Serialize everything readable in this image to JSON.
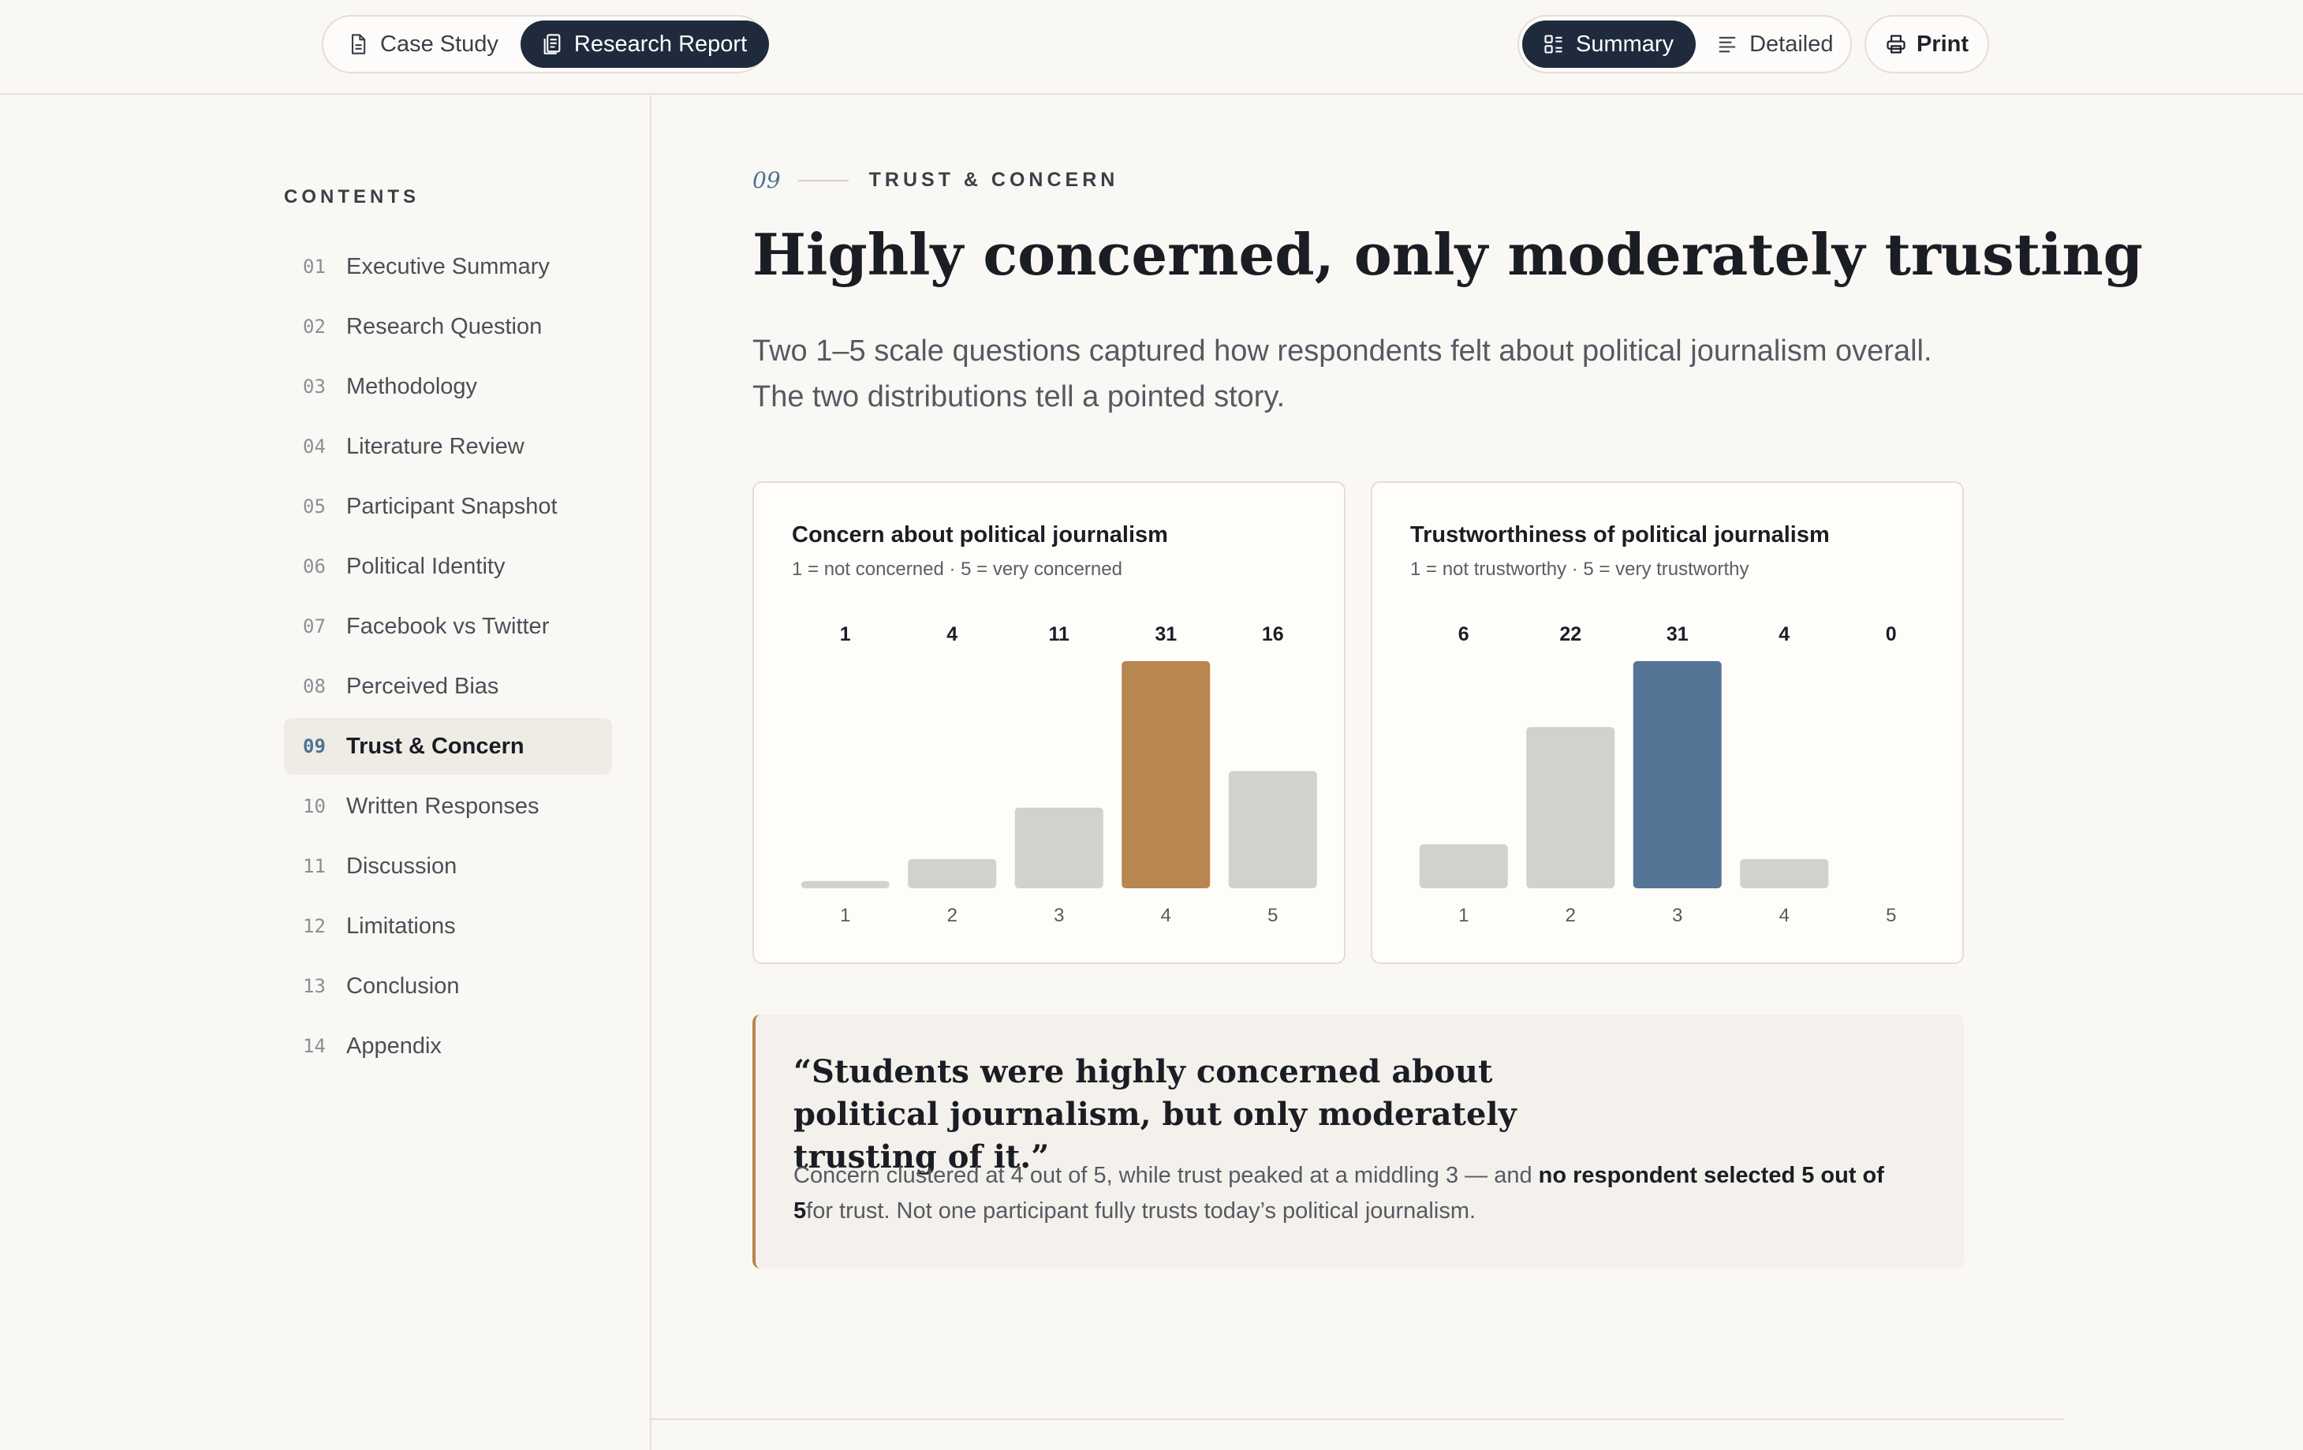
{
  "topbar": {
    "left_tabs": [
      {
        "label": "Case Study",
        "icon": "document-icon",
        "active": false
      },
      {
        "label": "Research Report",
        "icon": "report-icon",
        "active": true
      }
    ],
    "view_modes": [
      {
        "label": "Summary",
        "icon": "summary-icon",
        "active": true
      },
      {
        "label": "Detailed",
        "icon": "lines-icon",
        "active": false
      }
    ],
    "print_label": "Print"
  },
  "sidebar": {
    "contents_label": "CONTENTS",
    "items": [
      {
        "num": "01",
        "label": "Executive Summary"
      },
      {
        "num": "02",
        "label": "Research Question"
      },
      {
        "num": "03",
        "label": "Methodology"
      },
      {
        "num": "04",
        "label": "Literature Review"
      },
      {
        "num": "05",
        "label": "Participant Snapshot"
      },
      {
        "num": "06",
        "label": "Political Identity"
      },
      {
        "num": "07",
        "label": "Facebook vs Twitter"
      },
      {
        "num": "08",
        "label": "Perceived Bias"
      },
      {
        "num": "09",
        "label": "Trust & Concern",
        "active": true
      },
      {
        "num": "10",
        "label": "Written Responses"
      },
      {
        "num": "11",
        "label": "Discussion"
      },
      {
        "num": "12",
        "label": "Limitations"
      },
      {
        "num": "13",
        "label": "Conclusion"
      },
      {
        "num": "14",
        "label": "Appendix"
      }
    ]
  },
  "section": {
    "number": "09",
    "title": "TRUST & CONCERN",
    "heading": "Highly concerned, only moderately trusting",
    "lead": "Two 1–5 scale questions captured how respondents felt about political journalism overall. The two distributions tell a pointed story."
  },
  "chart_data": [
    {
      "type": "bar",
      "title": "Concern about political journalism",
      "subtitle": "1 = not concerned · 5 = very concerned",
      "categories": [
        "1",
        "2",
        "3",
        "4",
        "5"
      ],
      "values": [
        1,
        4,
        11,
        31,
        16
      ],
      "highlight_index": 3,
      "highlight_color": "#b8864f",
      "base_color": "#d3d1ce",
      "ylim": [
        0,
        31
      ]
    },
    {
      "type": "bar",
      "title": "Trustworthiness of political journalism",
      "subtitle": "1 = not trustworthy · 5 = very trustworthy",
      "categories": [
        "1",
        "2",
        "3",
        "4",
        "5"
      ],
      "values": [
        6,
        22,
        31,
        4,
        0
      ],
      "highlight_index": 2,
      "highlight_color": "#557597",
      "base_color": "#d3d1ce",
      "ylim": [
        0,
        31
      ]
    }
  ],
  "callout": {
    "quote": "“Students were highly concerned about political journalism, but only moderately trusting of it.”",
    "body_start": "Concern clustered at 4 out of 5, while trust peaked at a middling 3 — and ",
    "body_bold": "no respondent selected 5 out of 5",
    "body_end": "for trust. Not one participant fully trusts today’s political journalism."
  },
  "colors": {
    "accent_dark": "#1f2b3d",
    "accent_blue": "#4f7194",
    "accent_gold": "#b8864f",
    "background": "#faf8f4"
  }
}
